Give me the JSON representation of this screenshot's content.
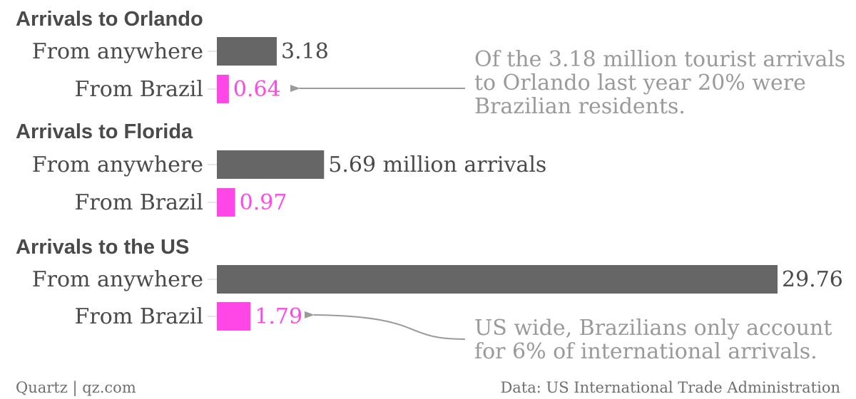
{
  "chart_data": {
    "type": "bar",
    "orientation": "horizontal",
    "groups": [
      {
        "title": "Arrivals to Orlando",
        "bars": [
          {
            "label": "From anywhere",
            "value": 3.18,
            "value_label": "3.18",
            "series": "anywhere"
          },
          {
            "label": "From Brazil",
            "value": 0.64,
            "value_label": "0.64",
            "series": "brazil"
          }
        ]
      },
      {
        "title": "Arrivals to Florida",
        "bars": [
          {
            "label": "From anywhere",
            "value": 5.69,
            "value_label": "5.69 million arrivals",
            "series": "anywhere"
          },
          {
            "label": "From Brazil",
            "value": 0.97,
            "value_label": "0.97",
            "series": "brazil"
          }
        ]
      },
      {
        "title": "Arrivals to the US",
        "bars": [
          {
            "label": "From anywhere",
            "value": 29.76,
            "value_label": "29.76",
            "series": "anywhere"
          },
          {
            "label": "From Brazil",
            "value": 1.79,
            "value_label": "1.79",
            "series": "brazil"
          }
        ]
      }
    ],
    "xlim": [
      0,
      29.76
    ],
    "grid": false,
    "legend": "none",
    "colors": {
      "anywhere": "#666666",
      "brazil": "#ff47e8",
      "annotation": "#9a9a9a"
    },
    "annotations": [
      {
        "lines": [
          "Of the 3.18 million tourist arrivals",
          "to Orlando last year 20% were",
          "Brazilian residents."
        ],
        "points_to": "Arrivals to Orlando / From Brazil"
      },
      {
        "lines": [
          "US wide, Brazilians only account",
          "for 6% of international arrivals."
        ],
        "points_to": "Arrivals to the US / From Brazil"
      }
    ]
  },
  "footer": {
    "credit": "Quartz | qz.com",
    "source": "Data: US International Trade Administration"
  }
}
